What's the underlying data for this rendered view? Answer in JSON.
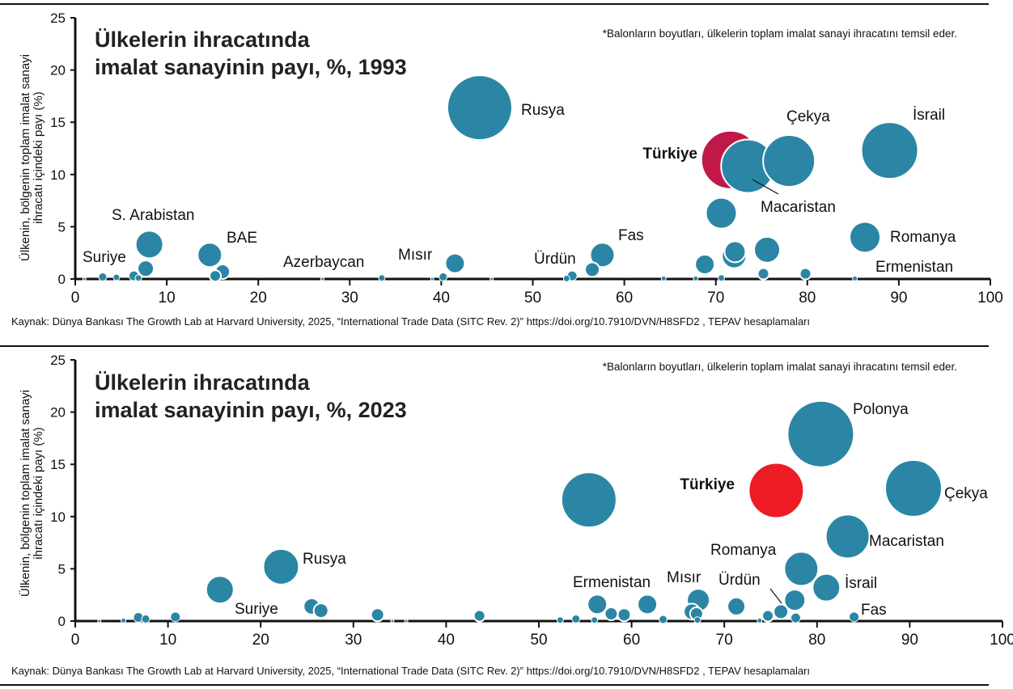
{
  "chart_data": [
    {
      "type": "scatter",
      "title_line1": "Ülkelerin ihracatında",
      "title_line2": "imalat sanayinin payı, %, 1993",
      "note": "*Balonların boyutları, ülkelerin toplam imalat sanayi ihracatını temsil eder.",
      "ylabel_line1": "Ülkenin, bölgenin toplam imalat sanayi",
      "ylabel_line2": "ihracatı içindeki payı (%)",
      "xlabel": "",
      "xlim": [
        0,
        100
      ],
      "ylim": [
        0,
        25
      ],
      "xticks": [
        0,
        10,
        20,
        30,
        40,
        50,
        60,
        70,
        80,
        90,
        100
      ],
      "yticks": [
        0,
        5,
        10,
        15,
        20,
        25
      ],
      "source": "Kaynak: Dünya Bankası The Growth Lab at Harvard University, 2025, “International Trade Data (SITC Rev. 2)” https://doi.org/10.7910/DVN/H8SFD2 , TEPAV hesaplamaları",
      "colors": {
        "bubble": "#2a86a4",
        "highlight": "#c1184a",
        "axis": "#111111"
      },
      "points": [
        {
          "x": 44.2,
          "y": 16.4,
          "r": 40,
          "label": "Rusya"
        },
        {
          "x": 71.6,
          "y": 11.4,
          "r": 36,
          "label": "Türkiye",
          "highlight": true
        },
        {
          "x": 78.0,
          "y": 11.3,
          "r": 32,
          "label": "Çekya"
        },
        {
          "x": 89.0,
          "y": 12.3,
          "r": 35,
          "label": "İsrail"
        },
        {
          "x": 73.5,
          "y": 10.8,
          "r": 33,
          "label": "Macaristan"
        },
        {
          "x": 70.6,
          "y": 6.3,
          "r": 19
        },
        {
          "x": 86.3,
          "y": 4.0,
          "r": 19,
          "label": "Romanya"
        },
        {
          "x": 8.1,
          "y": 3.3,
          "r": 17,
          "label": "S. Arabistan"
        },
        {
          "x": 14.7,
          "y": 2.3,
          "r": 15,
          "label": "BAE"
        },
        {
          "x": 57.6,
          "y": 2.3,
          "r": 15,
          "label": "Fas"
        },
        {
          "x": 75.6,
          "y": 2.8,
          "r": 16
        },
        {
          "x": 72.1,
          "y": 2.6,
          "r": 13
        },
        {
          "x": 72.0,
          "y": 2.2,
          "r": 15
        },
        {
          "x": 41.5,
          "y": 1.5,
          "r": 12,
          "label": "Mısır"
        },
        {
          "x": 68.8,
          "y": 1.4,
          "r": 12
        },
        {
          "x": 7.7,
          "y": 1.0,
          "r": 10,
          "label": "Suriye"
        },
        {
          "x": 16.1,
          "y": 0.7,
          "r": 9
        },
        {
          "x": 56.5,
          "y": 0.9,
          "r": 9,
          "label": "Ürdün"
        },
        {
          "x": 6.4,
          "y": 0.3,
          "r": 6
        },
        {
          "x": 15.3,
          "y": 0.3,
          "r": 7
        },
        {
          "x": 75.2,
          "y": 0.5,
          "r": 7
        },
        {
          "x": 79.8,
          "y": 0.5,
          "r": 7
        },
        {
          "x": 54.3,
          "y": 0.3,
          "r": 6
        },
        {
          "x": 3.0,
          "y": 0.2,
          "r": 5
        },
        {
          "x": 4.5,
          "y": 0.15,
          "r": 4
        },
        {
          "x": 6.9,
          "y": 0.1,
          "r": 4
        },
        {
          "x": 33.5,
          "y": 0.1,
          "r": 4
        },
        {
          "x": 40.2,
          "y": 0.2,
          "r": 5
        },
        {
          "x": 53.7,
          "y": 0.05,
          "r": 4
        },
        {
          "x": 70.6,
          "y": 0.1,
          "r": 4
        },
        {
          "x": 64.3,
          "y": 0.05,
          "r": 3
        },
        {
          "x": 67.8,
          "y": 0.05,
          "r": 3
        },
        {
          "x": 85.2,
          "y": 0.05,
          "r": 3,
          "label": "Ermenistan"
        },
        {
          "x": 1.0,
          "y": 0.0,
          "r": 2
        },
        {
          "x": 27.0,
          "y": 0.0,
          "r": 2,
          "label": "Azerbaycan"
        },
        {
          "x": 45.5,
          "y": 0.0,
          "r": 2
        },
        {
          "x": 39.0,
          "y": 0.0,
          "r": 2
        }
      ]
    },
    {
      "type": "scatter",
      "title_line1": "Ülkelerin ihracatında",
      "title_line2": "imalat sanayinin payı, %, 2023",
      "note": "*Balonların boyutları, ülkelerin toplam imalat sanayi ihracatını temsil eder.",
      "ylabel_line1": "Ülkenin, bölgenin toplam imalat sanayi",
      "ylabel_line2": "ihracatı içindeki payı (%)",
      "xlabel": "",
      "xlim": [
        0,
        100
      ],
      "ylim": [
        0,
        25
      ],
      "xticks": [
        0,
        10,
        20,
        30,
        40,
        50,
        60,
        70,
        80,
        90,
        100
      ],
      "yticks": [
        0,
        5,
        10,
        15,
        20,
        25
      ],
      "source": "Kaynak: Dünya Bankası The Growth Lab at Harvard University, 2025, “International Trade Data (SITC Rev. 2)” https://doi.org/10.7910/DVN/H8SFD2 , TEPAV hesaplamaları",
      "colors": {
        "bubble": "#2a86a4",
        "highlight": "#ee1c25",
        "axis": "#111111"
      },
      "points": [
        {
          "x": 80.4,
          "y": 17.9,
          "r": 41,
          "label": "Polonya"
        },
        {
          "x": 90.4,
          "y": 12.7,
          "r": 35,
          "label": "Çekya"
        },
        {
          "x": 75.6,
          "y": 12.5,
          "r": 34,
          "label": "Türkiye",
          "highlight": true
        },
        {
          "x": 55.4,
          "y": 11.6,
          "r": 34
        },
        {
          "x": 83.3,
          "y": 8.1,
          "r": 27,
          "label": "Macaristan"
        },
        {
          "x": 22.2,
          "y": 5.2,
          "r": 22,
          "label": "Rusya"
        },
        {
          "x": 78.3,
          "y": 5.0,
          "r": 21,
          "label": "Romanya"
        },
        {
          "x": 15.6,
          "y": 3.0,
          "r": 17,
          "label": "Suriye"
        },
        {
          "x": 81.0,
          "y": 3.2,
          "r": 17,
          "label": "İsrail"
        },
        {
          "x": 67.2,
          "y": 2.0,
          "r": 14,
          "label": "Mısır"
        },
        {
          "x": 77.6,
          "y": 2.0,
          "r": 13,
          "label": "Ürdün"
        },
        {
          "x": 56.3,
          "y": 1.6,
          "r": 12,
          "label": "Ermenistan"
        },
        {
          "x": 61.7,
          "y": 1.6,
          "r": 12
        },
        {
          "x": 71.3,
          "y": 1.4,
          "r": 11
        },
        {
          "x": 25.5,
          "y": 1.4,
          "r": 10
        },
        {
          "x": 26.5,
          "y": 1.0,
          "r": 9
        },
        {
          "x": 66.5,
          "y": 0.9,
          "r": 10
        },
        {
          "x": 67.0,
          "y": 0.7,
          "r": 8
        },
        {
          "x": 76.1,
          "y": 0.9,
          "r": 9
        },
        {
          "x": 57.8,
          "y": 0.7,
          "r": 8
        },
        {
          "x": 59.2,
          "y": 0.6,
          "r": 8
        },
        {
          "x": 32.6,
          "y": 0.6,
          "r": 8
        },
        {
          "x": 43.6,
          "y": 0.5,
          "r": 7
        },
        {
          "x": 74.7,
          "y": 0.5,
          "r": 7
        },
        {
          "x": 10.8,
          "y": 0.4,
          "r": 6
        },
        {
          "x": 6.8,
          "y": 0.35,
          "r": 6
        },
        {
          "x": 84.0,
          "y": 0.4,
          "r": 6,
          "label": "Fas"
        },
        {
          "x": 77.7,
          "y": 0.3,
          "r": 6
        },
        {
          "x": 7.6,
          "y": 0.2,
          "r": 5
        },
        {
          "x": 54.0,
          "y": 0.2,
          "r": 5
        },
        {
          "x": 63.4,
          "y": 0.15,
          "r": 5
        },
        {
          "x": 67.1,
          "y": 0.1,
          "r": 4
        },
        {
          "x": 52.3,
          "y": 0.1,
          "r": 4
        },
        {
          "x": 56.0,
          "y": 0.1,
          "r": 4
        },
        {
          "x": 73.8,
          "y": 0.05,
          "r": 3
        },
        {
          "x": 5.2,
          "y": 0.05,
          "r": 3
        },
        {
          "x": 2.6,
          "y": 0.0,
          "r": 2
        },
        {
          "x": 34.2,
          "y": 0.0,
          "r": 2
        },
        {
          "x": 35.7,
          "y": 0.0,
          "r": 2
        }
      ]
    }
  ]
}
